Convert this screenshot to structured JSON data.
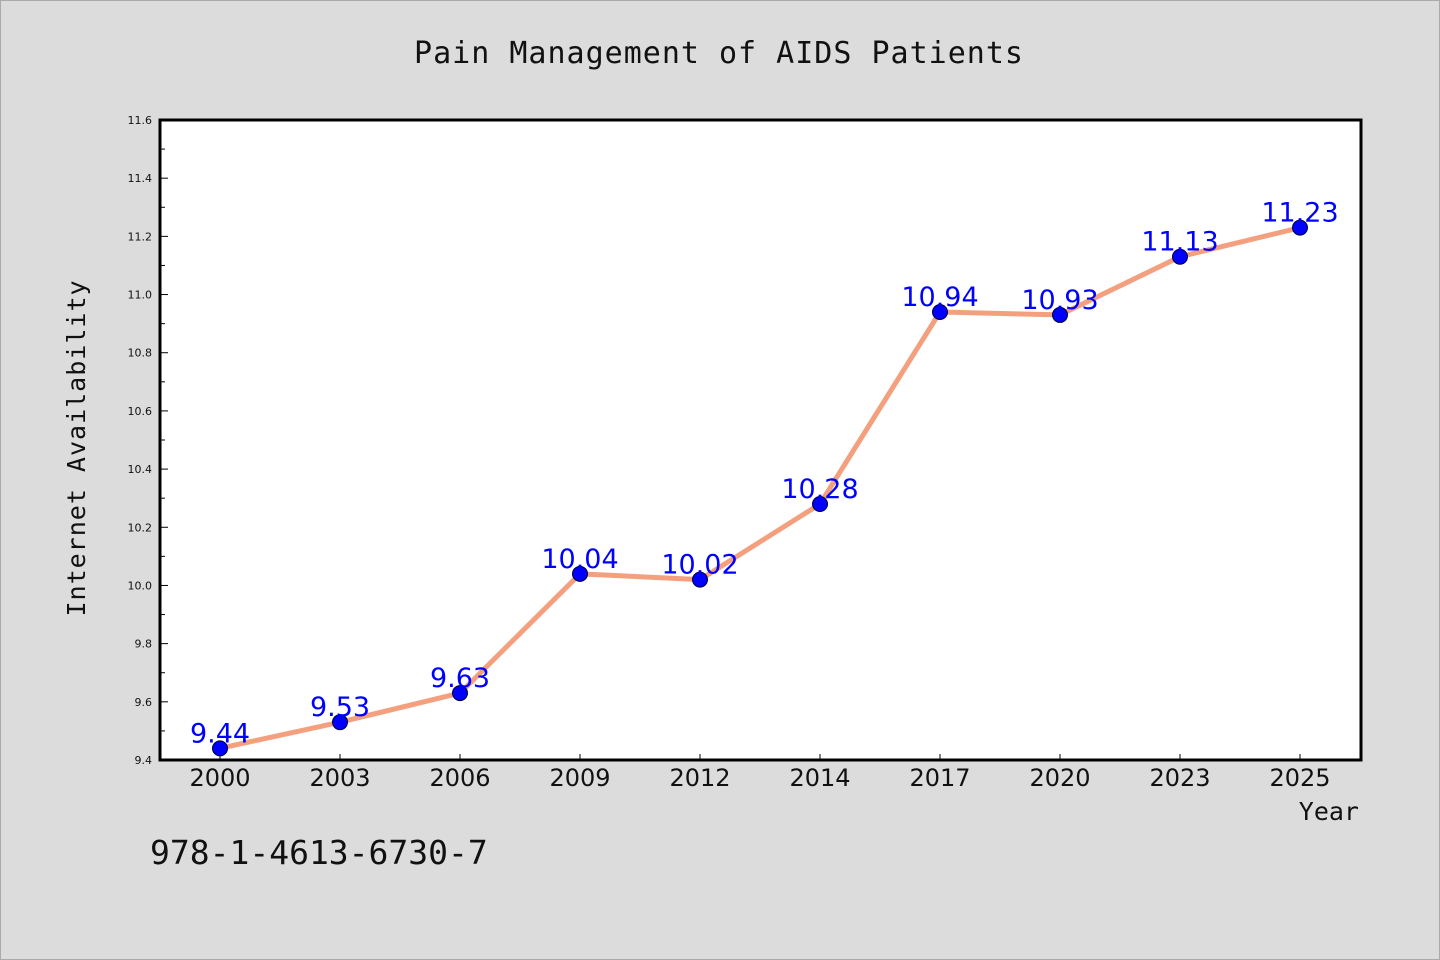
{
  "chart_data": {
    "type": "line",
    "title": "Pain Management of AIDS Patients",
    "xlabel": "Year",
    "ylabel": "Internet Availability",
    "categories": [
      "2000",
      "2003",
      "2006",
      "2009",
      "2012",
      "2014",
      "2017",
      "2020",
      "2023",
      "2025"
    ],
    "series": [
      {
        "values": [
          9.44,
          9.53,
          9.63,
          10.04,
          10.02,
          10.28,
          10.94,
          10.93,
          11.13,
          11.23
        ],
        "data_labels": [
          "9.44",
          "9.53",
          "9.63",
          "10.04",
          "10.02",
          "10.28",
          "10.94",
          "10.93",
          "11.13",
          "11.23"
        ]
      }
    ],
    "ylim": [
      9.4,
      11.6
    ],
    "yticks": [
      "9.4",
      "9.6",
      "9.8",
      "10.0",
      "10.2",
      "10.4",
      "10.6",
      "10.8",
      "11.0",
      "11.2",
      "11.4",
      "11.6"
    ],
    "grid": false,
    "legend": "none"
  },
  "footer_text": "978-1-4613-6730-7",
  "colors": {
    "background": "#dcdcdc",
    "plot_area": "#ffffff",
    "line": "#f4a07e",
    "marker": "#0000ff",
    "data_label": "#0000ff"
  }
}
